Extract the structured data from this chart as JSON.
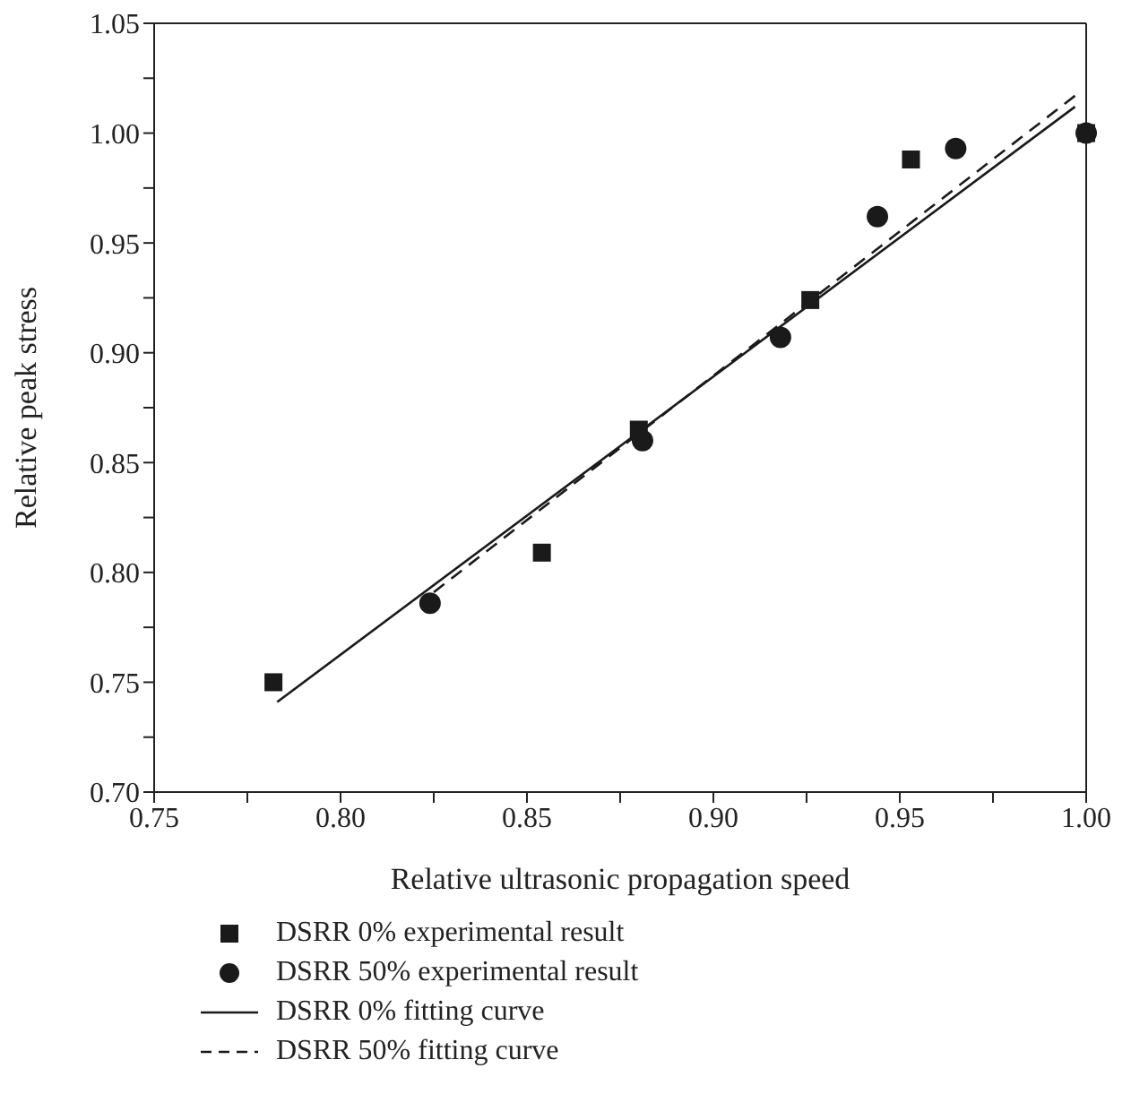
{
  "chart_data": {
    "type": "scatter",
    "xlabel": "Relative ultrasonic propagation speed",
    "ylabel": "Relative peak stress",
    "xlim": [
      0.75,
      1.0
    ],
    "ylim": [
      0.7,
      1.05
    ],
    "xticks": [
      0.75,
      {
        "value": 0.775,
        "label": null
      },
      {
        "value": 0.8,
        "label": "0.80"
      },
      {
        "value": 0.825,
        "label": null
      },
      0.85,
      {
        "value": 0.875,
        "label": null
      },
      {
        "value": 0.9,
        "label": "0.90"
      },
      {
        "value": 0.925,
        "label": null
      },
      0.95,
      {
        "value": 0.975,
        "label": null
      },
      {
        "value": 1.0,
        "label": "1.00"
      }
    ],
    "yticks": [
      {
        "value": 0.7,
        "label": "0.70"
      },
      {
        "value": 0.725,
        "label": null
      },
      0.75,
      {
        "value": 0.775,
        "label": null
      },
      {
        "value": 0.8,
        "label": "0.80"
      },
      {
        "value": 0.825,
        "label": null
      },
      0.85,
      {
        "value": 0.875,
        "label": null
      },
      {
        "value": 0.9,
        "label": "0.90"
      },
      {
        "value": 0.925,
        "label": null
      },
      0.95,
      {
        "value": 0.975,
        "label": null
      },
      {
        "value": 1.0,
        "label": "1.00"
      },
      {
        "value": 1.025,
        "label": null
      },
      1.05
    ],
    "legend": "bottom",
    "grid": false,
    "series": [
      {
        "name": "DSRR 0% experimental result",
        "marker": "square",
        "color": "#1a1a1a",
        "x": [
          0.782,
          0.854,
          0.88,
          0.926,
          0.953,
          1.0
        ],
        "values": [
          0.75,
          0.809,
          0.865,
          0.924,
          0.988,
          1.0
        ]
      },
      {
        "name": "DSRR 50% experimental result",
        "marker": "circle",
        "color": "#1a1a1a",
        "x": [
          0.824,
          0.881,
          0.918,
          0.944,
          0.965,
          1.0
        ],
        "values": [
          0.786,
          0.86,
          0.907,
          0.962,
          0.993,
          1.0
        ]
      },
      {
        "name": "DSRR 0% fitting curve",
        "type": "line",
        "line_style": "solid",
        "color": "#1a1a1a",
        "x": [
          0.783,
          0.997
        ],
        "values": [
          0.741,
          1.012
        ]
      },
      {
        "name": "DSRR 50% fitting curve",
        "type": "line",
        "line_style": "dashed",
        "color": "#1a1a1a",
        "x": [
          0.825,
          0.997
        ],
        "values": [
          0.791,
          1.017
        ]
      }
    ]
  }
}
